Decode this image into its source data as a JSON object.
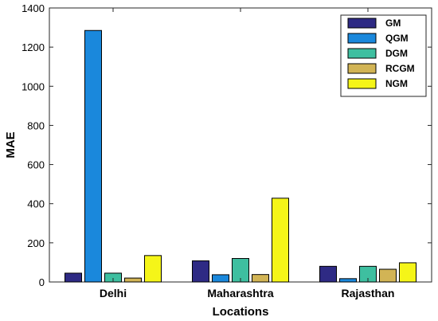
{
  "chart_data": {
    "type": "bar",
    "title": "",
    "xlabel": "Locations",
    "ylabel": "MAE",
    "categories": [
      "Delhi",
      "Maharashtra",
      "Rajasthan"
    ],
    "ylim": [
      0,
      1400
    ],
    "yticks": [
      0,
      200,
      400,
      600,
      800,
      1000,
      1200,
      1400
    ],
    "grid": false,
    "legend_position": "top-right",
    "series": [
      {
        "name": "GM",
        "color": "#2e2a84",
        "values": [
          45,
          108,
          80
        ]
      },
      {
        "name": "QGM",
        "color": "#1a88dc",
        "values": [
          1285,
          37,
          17
        ]
      },
      {
        "name": "DGM",
        "color": "#3ebfa0",
        "values": [
          45,
          120,
          80
        ]
      },
      {
        "name": "RCGM",
        "color": "#d2b455",
        "values": [
          20,
          38,
          65
        ]
      },
      {
        "name": "NGM",
        "color": "#f5f518",
        "values": [
          135,
          428,
          98
        ]
      }
    ]
  }
}
